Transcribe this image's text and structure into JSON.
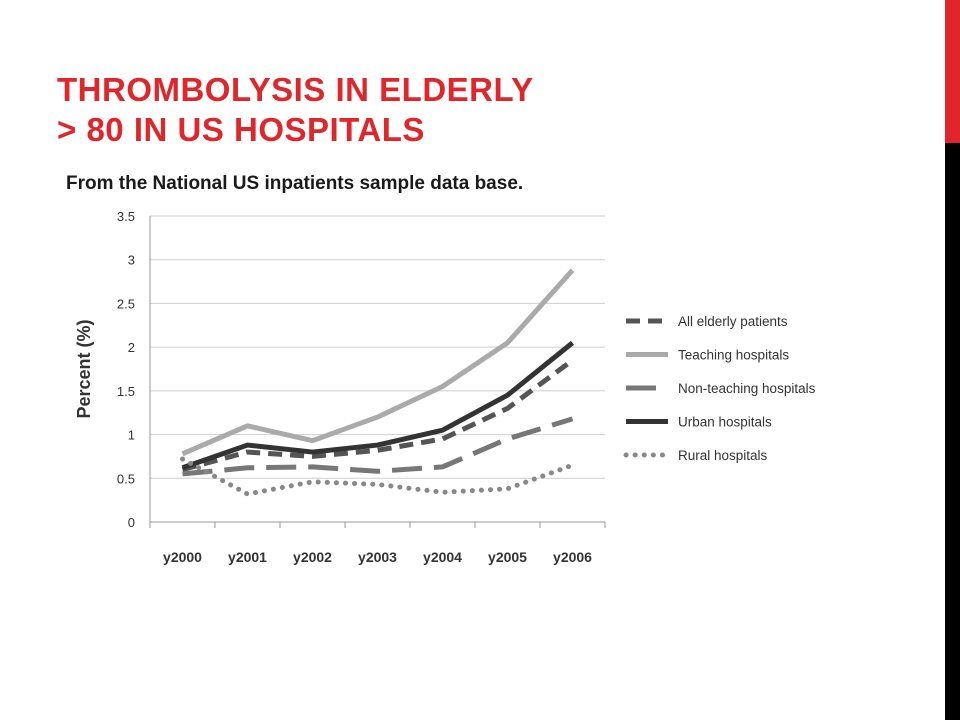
{
  "slide": {
    "title_line1": "THROMBOLYSIS IN ELDERLY",
    "title_line2": "> 80 IN US HOSPITALS",
    "subtitle": "From the National US inpatients sample data base."
  },
  "colors": {
    "accent": "#e0262b",
    "sidebar_bottom": "#000000"
  },
  "chart_data": {
    "type": "line",
    "categories": [
      "y2000",
      "y2001",
      "y2002",
      "y2003",
      "y2004",
      "y2005",
      "y2006"
    ],
    "ylabel": "Percent (%)",
    "xlabel": "",
    "ylim": [
      0,
      3.5
    ],
    "yticks": [
      "0",
      "0.5",
      "1",
      "1.5",
      "2",
      "2.5",
      "3",
      "3.5"
    ],
    "grid": "horizontal",
    "legend": "right",
    "series": [
      {
        "name": "All elderly patients",
        "values": [
          0.6,
          0.8,
          0.75,
          0.82,
          0.95,
          1.3,
          1.85
        ],
        "color": "#555555",
        "style": "dashed"
      },
      {
        "name": "Teaching hospitals",
        "values": [
          0.78,
          1.1,
          0.93,
          1.2,
          1.55,
          2.05,
          2.88
        ],
        "color": "#aaaaaa",
        "style": "solid"
      },
      {
        "name": "Non-teaching hospitals",
        "values": [
          0.55,
          0.62,
          0.63,
          0.58,
          0.63,
          0.95,
          1.18
        ],
        "color": "#777777",
        "style": "longdash"
      },
      {
        "name": "Urban hospitals",
        "values": [
          0.62,
          0.88,
          0.8,
          0.88,
          1.05,
          1.45,
          2.05
        ],
        "color": "#333333",
        "style": "solid"
      },
      {
        "name": "Rural hospitals",
        "values": [
          0.72,
          0.32,
          0.46,
          0.43,
          0.34,
          0.38,
          0.65
        ],
        "color": "#888888",
        "style": "dotted"
      }
    ]
  }
}
